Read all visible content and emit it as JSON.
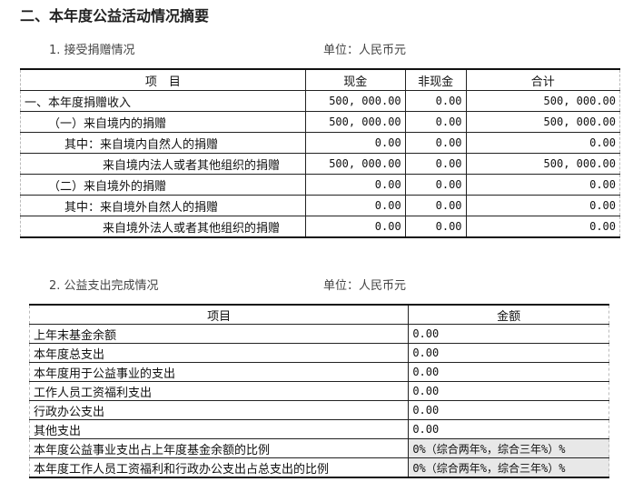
{
  "section_title": "二、本年度公益活动情况摘要",
  "donations": {
    "subtitle": "1. 接受捐赠情况",
    "unit": "单位：人民币元",
    "headers": [
      "项　目",
      "现金",
      "非现金",
      "合计"
    ],
    "rows": [
      {
        "label": "一、本年度捐赠收入",
        "indent": 0,
        "cash": "500, 000.00",
        "noncash": "0.00",
        "total": "500, 000.00"
      },
      {
        "label": "（一）来自境内的捐赠",
        "indent": 1,
        "cash": "500, 000.00",
        "noncash": "0.00",
        "total": "500, 000.00"
      },
      {
        "label": "其中：来自境内自然人的捐赠",
        "indent": 2,
        "cash": "0.00",
        "noncash": "0.00",
        "total": "0.00"
      },
      {
        "label": "来自境内法人或者其他组织的捐赠",
        "indent": 3,
        "cash": "500, 000.00",
        "noncash": "0.00",
        "total": "500, 000.00"
      },
      {
        "label": "（二）来自境外的捐赠",
        "indent": 1,
        "cash": "0.00",
        "noncash": "0.00",
        "total": "0.00"
      },
      {
        "label": "其中：来自境外自然人的捐赠",
        "indent": 2,
        "cash": "0.00",
        "noncash": "0.00",
        "total": "0.00"
      },
      {
        "label": "来自境外法人或者其他组织的捐赠",
        "indent": 3,
        "cash": "0.00",
        "noncash": "0.00",
        "total": "0.00"
      }
    ]
  },
  "expenses": {
    "subtitle": "2. 公益支出完成情况",
    "unit": "单位：人民币元",
    "headers": [
      "项目",
      "金额"
    ],
    "rows": [
      {
        "label": "上年末基金余额",
        "value": "0.00"
      },
      {
        "label": "本年度总支出",
        "value": "0.00"
      },
      {
        "label": "本年度用于公益事业的支出",
        "value": "0.00"
      },
      {
        "label": "工作人员工资福利支出",
        "value": "0.00"
      },
      {
        "label": "行政办公支出",
        "value": "0.00"
      },
      {
        "label": "其他支出",
        "value": "0.00"
      },
      {
        "label": "本年度公益事业支出占上年度基金余额的比例",
        "value": "0%（综合两年%，综合三年%）%",
        "shaded": true
      },
      {
        "label": "本年度工作人员工资福利和行政办公支出占总支出的比例",
        "value": "0%（综合两年%，综合三年%）%",
        "shaded": true
      }
    ]
  }
}
